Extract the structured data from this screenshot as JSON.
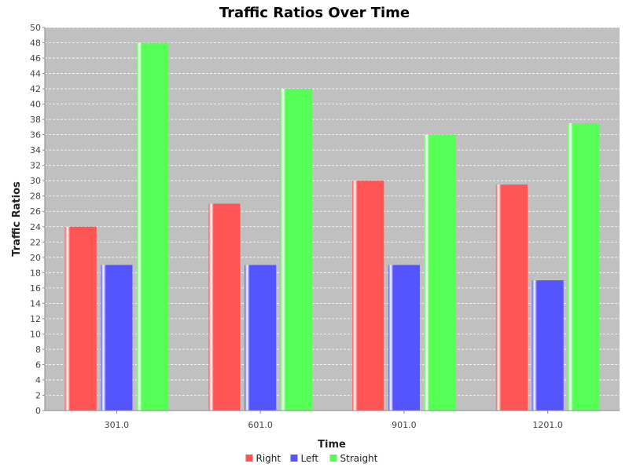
{
  "colors": {
    "plot_bg": "#c0c0c0",
    "grid": "#ffffff",
    "axis": "#888888",
    "right": "#ff5555",
    "left": "#5555ff",
    "straight": "#55ff55"
  },
  "chart_data": {
    "type": "bar",
    "title": "Traffic Ratios Over Time",
    "xlabel": "Time",
    "ylabel": "Traffic Ratios",
    "categories": [
      "301.0",
      "601.0",
      "901.0",
      "1201.0"
    ],
    "series": [
      {
        "name": "Right",
        "color": "#ff5555",
        "values": [
          24,
          27,
          30,
          29.5
        ]
      },
      {
        "name": "Left",
        "color": "#5555ff",
        "values": [
          19,
          19,
          19,
          17
        ]
      },
      {
        "name": "Straight",
        "color": "#55ff55",
        "values": [
          48,
          42,
          36,
          37.5
        ]
      }
    ],
    "ylim": [
      0,
      50
    ],
    "yticks": [
      0,
      2,
      4,
      6,
      8,
      10,
      12,
      14,
      16,
      18,
      20,
      22,
      24,
      26,
      28,
      30,
      32,
      34,
      36,
      38,
      40,
      42,
      44,
      46,
      48,
      50
    ],
    "grid": true,
    "legend_position": "bottom"
  }
}
